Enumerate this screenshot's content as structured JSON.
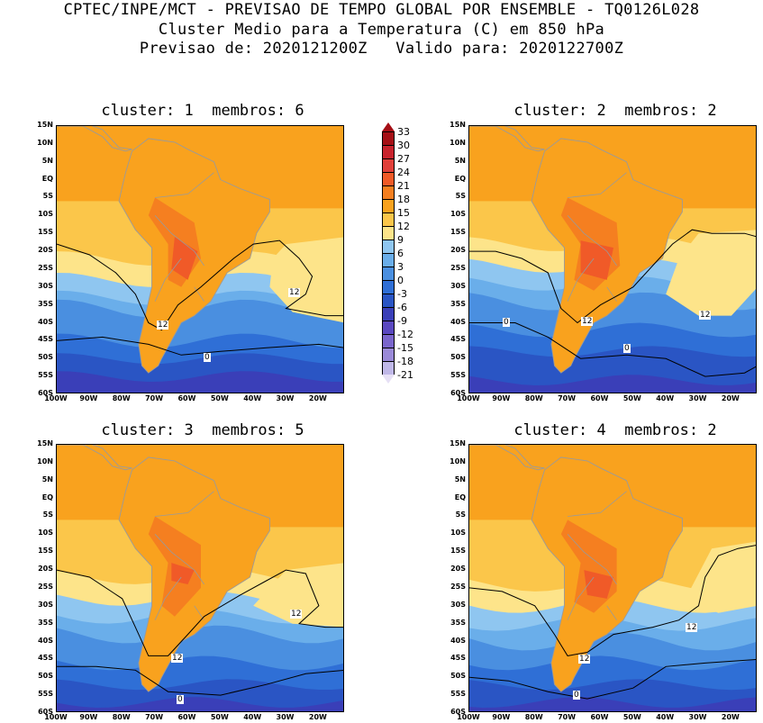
{
  "header": {
    "line1": "CPTEC/INPE/MCT - PREVISAO DE TEMPO GLOBAL POR ENSEMBLE - TQ0126L028",
    "line2": "Cluster Medio para a Temperatura (C) em 850 hPa",
    "line3": "Previsao de: 2020121200Z   Valido para: 2020122700Z"
  },
  "panels": [
    {
      "title": "cluster: 1  membros: 6",
      "contour_labels": [
        "12",
        "12",
        "0"
      ]
    },
    {
      "title": "cluster: 2  membros: 2",
      "contour_labels": [
        "12",
        "12",
        "0",
        "0"
      ]
    },
    {
      "title": "cluster: 3  membros: 5",
      "contour_labels": [
        "12",
        "12",
        "0"
      ]
    },
    {
      "title": "cluster: 4  membros: 2",
      "contour_labels": [
        "12",
        "12",
        "0"
      ]
    }
  ],
  "lat_ticks": [
    "15N",
    "10N",
    "5N",
    "EQ",
    "5S",
    "10S",
    "15S",
    "20S",
    "25S",
    "30S",
    "35S",
    "40S",
    "45S",
    "50S",
    "55S",
    "60S"
  ],
  "lon_ticks": [
    "100W",
    "90W",
    "80W",
    "70W",
    "60W",
    "50W",
    "40W",
    "30W",
    "20W"
  ],
  "colorbar": {
    "labels": [
      "33",
      "30",
      "27",
      "24",
      "21",
      "18",
      "15",
      "12",
      "9",
      "6",
      "3",
      "0",
      "-3",
      "-6",
      "-9",
      "-12",
      "-15",
      "-18",
      "-21"
    ],
    "colors": [
      "#a50f15",
      "#c8232d",
      "#e0403a",
      "#f05a28",
      "#f57f20",
      "#f9a21e",
      "#fbc64a",
      "#fde48a",
      "#8fc6f0",
      "#6aaeea",
      "#4a8fe0",
      "#2f6fd6",
      "#2a55c4",
      "#3a3fb8",
      "#5a48c0",
      "#7a66cc",
      "#9a8ad8",
      "#c0b8e8"
    ]
  },
  "colors": {
    "land_border": "#9a9a9a",
    "contour": "#000000"
  }
}
